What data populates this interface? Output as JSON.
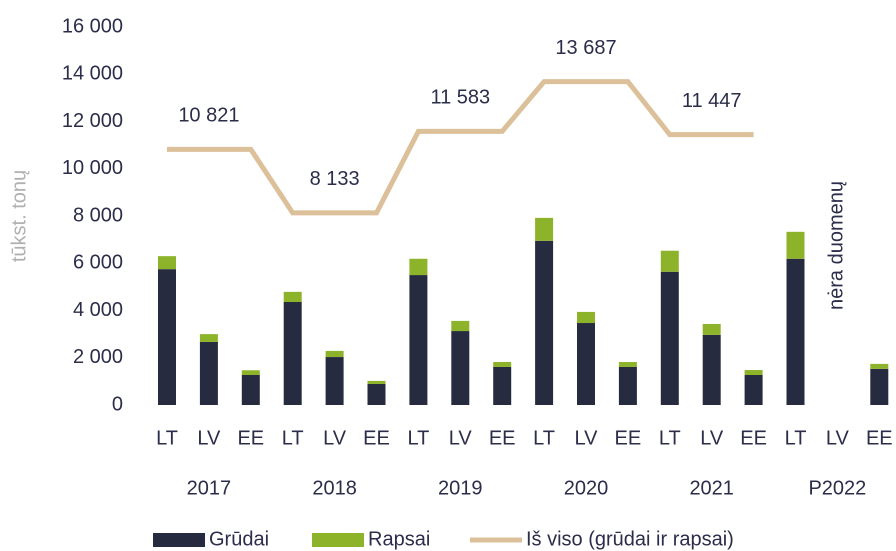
{
  "chart_data": {
    "type": "bar-line",
    "y_axis_label": "tūkst. tonų",
    "categories": [
      "LT",
      "LV",
      "EE",
      "LT",
      "LV",
      "EE",
      "LT",
      "LV",
      "EE",
      "LT",
      "LV",
      "EE",
      "LT",
      "LV",
      "EE",
      "LT",
      "LV",
      "EE"
    ],
    "groups": [
      "2017",
      "2018",
      "2019",
      "2020",
      "2021",
      "P2022"
    ],
    "stacked": true,
    "series": [
      {
        "name": "Grūdai",
        "color": "#262b40",
        "values": [
          5750,
          2670,
          1270,
          4360,
          2030,
          890,
          5500,
          3130,
          1610,
          6950,
          3470,
          1610,
          5640,
          2970,
          1270,
          6190,
          null,
          1530
        ]
      },
      {
        "name": "Rapsai",
        "color": "#8db32b",
        "values": [
          550,
          330,
          200,
          430,
          260,
          130,
          690,
          430,
          210,
          970,
          470,
          210,
          890,
          460,
          210,
          1140,
          null,
          210
        ]
      },
      {
        "name": "Iš viso (grūdai ir rapsai)",
        "type": "line",
        "color": "#dcc09a",
        "values": [
          10821,
          10821,
          10821,
          8133,
          8133,
          8133,
          11583,
          11583,
          11583,
          13687,
          13687,
          13687,
          11447,
          11447,
          11447,
          null,
          null,
          null
        ],
        "value_labels": [
          null,
          "10 821",
          null,
          null,
          "8 133",
          null,
          null,
          "11 583",
          null,
          null,
          "13 687",
          null,
          null,
          "11 447",
          null,
          null,
          null,
          null
        ]
      }
    ],
    "annotation": "nėra duomenų",
    "ylim": [
      0,
      16000
    ],
    "yticks": [
      0,
      {
        "value": 2000,
        "label": "2 000"
      },
      {
        "value": 4000,
        "label": "4 000"
      },
      {
        "value": 6000,
        "label": "6 000"
      },
      {
        "value": 8000,
        "label": "8 000"
      },
      {
        "value": 10000,
        "label": "10 000"
      },
      {
        "value": 12000,
        "label": "12 000"
      },
      {
        "value": 14000,
        "label": "14 000"
      },
      {
        "value": 16000,
        "label": "16 000"
      }
    ],
    "grid": false,
    "legend": "bottom"
  }
}
